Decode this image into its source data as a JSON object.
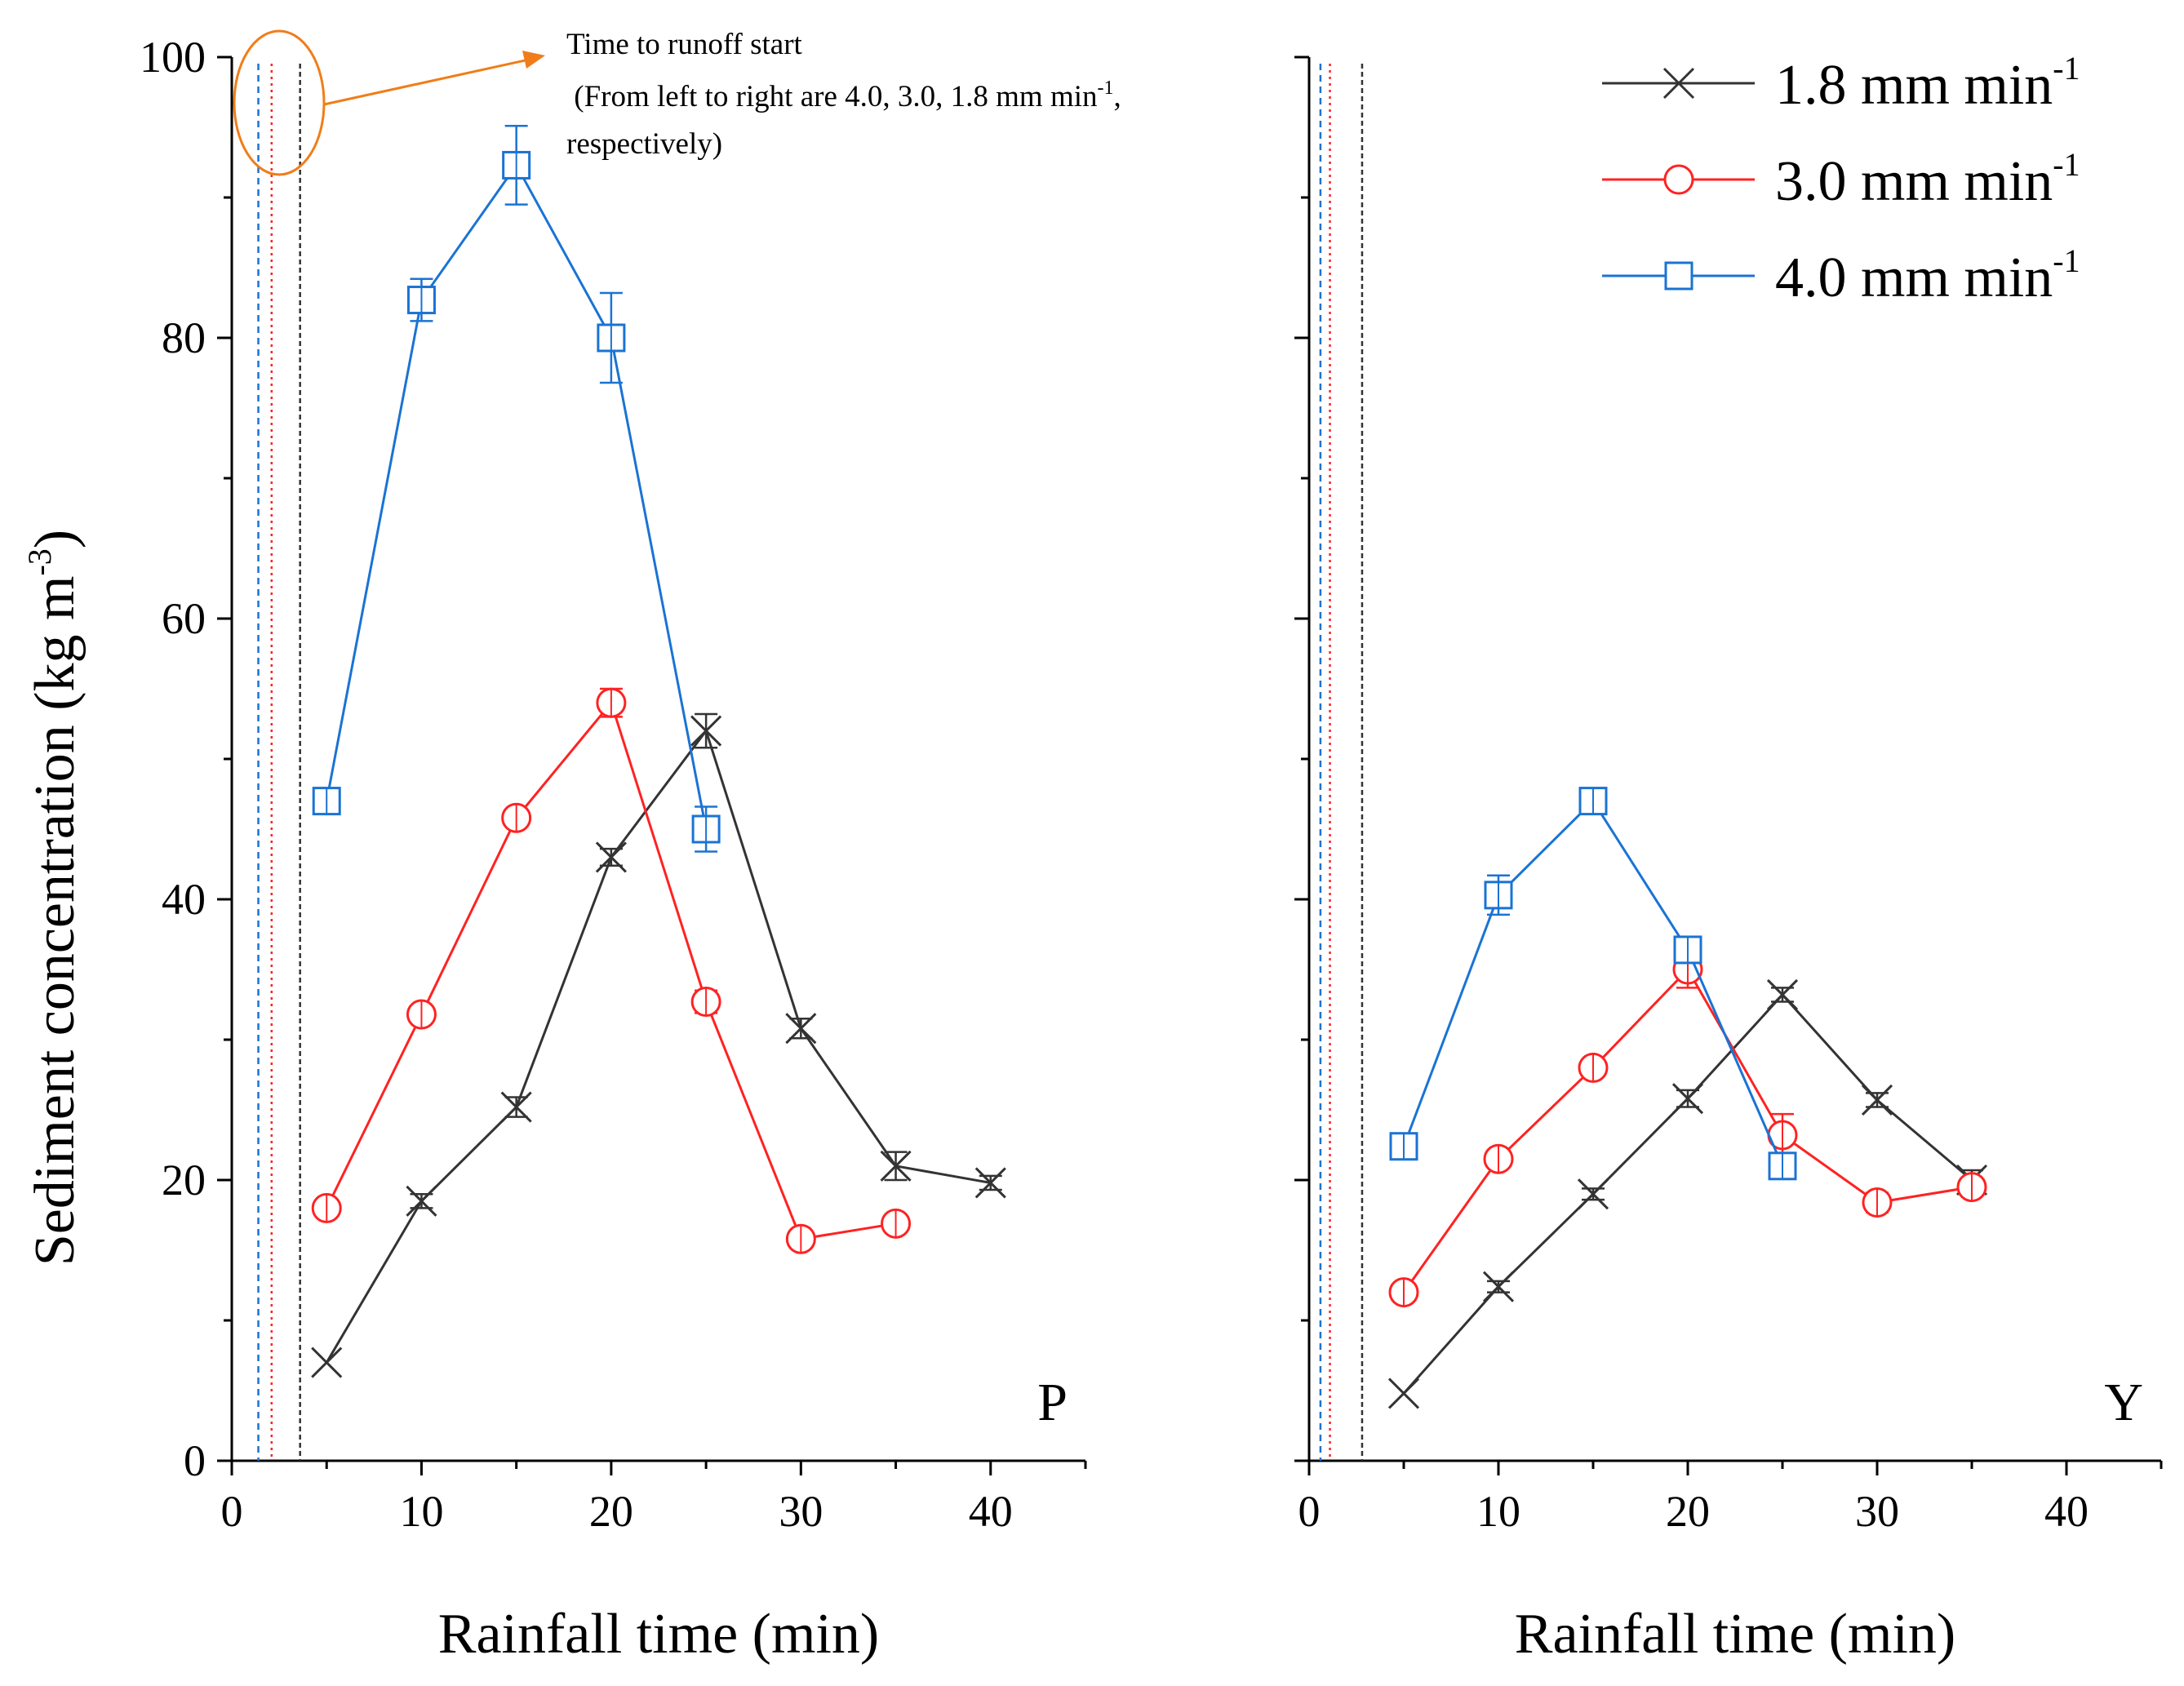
{
  "chart_data": {
    "type": "line",
    "ylabel": "Sediment concentration (kg m",
    "ylabel_sup": "-3",
    "ylabel_end": ")",
    "ylim": [
      0,
      100
    ],
    "yticks": [
      0,
      20,
      40,
      60,
      80,
      100
    ],
    "xlim": [
      0,
      45
    ],
    "xticks": [
      0,
      10,
      20,
      30,
      40
    ],
    "colors": {
      "s18": "#333333",
      "s30": "#ff2222",
      "s40": "#1a73d4",
      "annotation": "#f07d1a"
    },
    "legend": {
      "placement": "top-right",
      "entries": [
        {
          "key": "s18",
          "label": "1.8 mm min",
          "sup": "-1",
          "marker": "x"
        },
        {
          "key": "s30",
          "label": "3.0 mm min",
          "sup": "-1",
          "marker": "circle"
        },
        {
          "key": "s40",
          "label": "4.0 mm min",
          "sup": "-1",
          "marker": "square"
        }
      ]
    },
    "annotation": {
      "line1": "Time to runoff start",
      "line2": " (From left to right are 4.0, 3.0, 1.8 mm min",
      "line2_sup": "-1",
      "line2_end": ",",
      "line3": "respectively)"
    },
    "panels": [
      {
        "id": "P",
        "label": "P",
        "xlabel": "Rainfall time (min)",
        "runoff_start": [
          1.4,
          2.1,
          3.6
        ],
        "series": [
          {
            "key": "s18",
            "name": "1.8 mm min-1",
            "marker": "x",
            "x": [
              5,
              10,
              15,
              20,
              25,
              30,
              35,
              40
            ],
            "y": [
              7,
              18.5,
              25.2,
              43,
              52,
              30.8,
              21,
              19.8
            ],
            "err": [
              0,
              0.5,
              0.7,
              0.6,
              1.2,
              0.7,
              1.0,
              0.5
            ]
          },
          {
            "key": "s30",
            "name": "3.0 mm min-1",
            "marker": "circle",
            "x": [
              5,
              10,
              15,
              20,
              25,
              30,
              35
            ],
            "y": [
              18,
              31.8,
              45.8,
              54,
              32.7,
              15.8,
              16.9
            ],
            "err": [
              0.3,
              0.6,
              0.6,
              1.0,
              0.8,
              0.5,
              0.6
            ]
          },
          {
            "key": "s40",
            "name": "4.0 mm min-1",
            "marker": "square",
            "x": [
              5,
              10,
              15,
              20,
              25
            ],
            "y": [
              47,
              82.7,
              92.3,
              80,
              45
            ],
            "err": [
              0.6,
              1.5,
              2.8,
              3.2,
              1.6
            ]
          }
        ]
      },
      {
        "id": "Y",
        "label": "Y",
        "xlabel": "Rainfall time (min)",
        "runoff_start": [
          0.6,
          1.1,
          2.8
        ],
        "series": [
          {
            "key": "s18",
            "name": "1.8 mm min-1",
            "marker": "x",
            "x": [
              5,
              10,
              15,
              20,
              25,
              30,
              35
            ],
            "y": [
              4.8,
              12.4,
              19,
              25.8,
              33.2,
              25.7,
              20
            ],
            "err": [
              0,
              0.4,
              0.4,
              0.6,
              0.5,
              0.5,
              0.7
            ]
          },
          {
            "key": "s30",
            "name": "3.0 mm min-1",
            "marker": "circle",
            "x": [
              5,
              10,
              15,
              20,
              25,
              30,
              35
            ],
            "y": [
              12,
              21.5,
              28,
              35,
              23.2,
              18.4,
              19.5
            ],
            "err": [
              0.5,
              0.6,
              0.6,
              1.3,
              1.5,
              0.7,
              0.6
            ]
          },
          {
            "key": "s40",
            "name": "4.0 mm min-1",
            "marker": "square",
            "x": [
              5,
              10,
              15,
              20,
              25
            ],
            "y": [
              22.4,
              40.3,
              47,
              36.4,
              21
            ],
            "err": [
              0.6,
              1.4,
              0.4,
              0.8,
              0.6
            ]
          }
        ]
      }
    ]
  }
}
